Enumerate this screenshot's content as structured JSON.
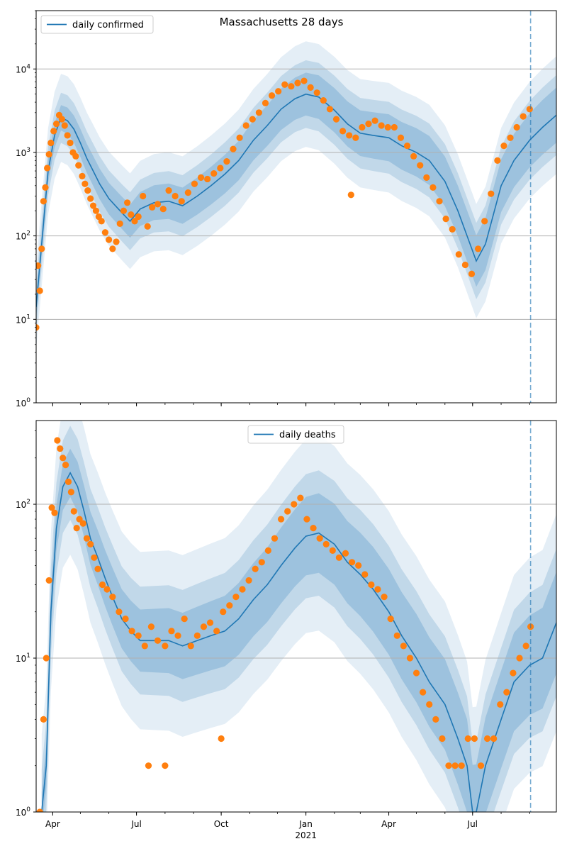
{
  "figure_title": "Massachusetts 28 days",
  "colors": {
    "line": "#1f77b4",
    "points": "#ff7f0e",
    "band": "#1f77b4",
    "grid": "#b0b0b0"
  },
  "chart_data": [
    {
      "type": "line",
      "title": "Massachusetts 28 days",
      "legend": "daily confirmed",
      "legend_position": "top-left",
      "y_scale": "log",
      "ylim": [
        1,
        50000
      ],
      "y_ticks": [
        1,
        10,
        100,
        1000,
        10000
      ],
      "y_tick_labels": [
        "10^0",
        "10^1",
        "10^2",
        "10^3",
        "10^4"
      ],
      "x_range": [
        "2020-03-14",
        "2021-09-30"
      ],
      "x_ticks": [
        "2020-04-01",
        "2020-07-01",
        "2020-10-01",
        "2021-01-01",
        "2021-04-01",
        "2021-07-01"
      ],
      "x_tick_labels": [
        "",
        "",
        "",
        "",
        "",
        ""
      ],
      "x_label_year": "",
      "grid": "horizontal",
      "vline_date": "2021-09-02",
      "series": [
        {
          "name": "daily confirmed",
          "style": "line",
          "x": [
            "2020-03-14",
            "2020-03-20",
            "2020-03-27",
            "2020-04-03",
            "2020-04-10",
            "2020-04-17",
            "2020-04-24",
            "2020-05-01",
            "2020-05-08",
            "2020-05-15",
            "2020-05-22",
            "2020-06-01",
            "2020-06-15",
            "2020-06-24",
            "2020-07-05",
            "2020-07-20",
            "2020-08-05",
            "2020-08-20",
            "2020-09-05",
            "2020-09-20",
            "2020-10-05",
            "2020-10-20",
            "2020-11-05",
            "2020-11-20",
            "2020-12-05",
            "2020-12-20",
            "2021-01-01",
            "2021-01-15",
            "2021-02-01",
            "2021-02-15",
            "2021-03-01",
            "2021-03-15",
            "2021-04-01",
            "2021-04-15",
            "2021-05-01",
            "2021-05-15",
            "2021-06-01",
            "2021-06-15",
            "2021-06-25",
            "2021-07-05",
            "2021-07-15",
            "2021-08-01",
            "2021-08-15",
            "2021-09-01",
            "2021-09-15",
            "2021-09-30"
          ],
          "y": [
            14,
            80,
            600,
            1600,
            2600,
            2400,
            1900,
            1300,
            850,
            600,
            420,
            280,
            190,
            150,
            210,
            250,
            260,
            230,
            300,
            400,
            550,
            800,
            1400,
            2100,
            3300,
            4400,
            5000,
            4600,
            3200,
            2200,
            1700,
            1600,
            1500,
            1200,
            1000,
            800,
            450,
            200,
            100,
            50,
            80,
            400,
            800,
            1400,
            2000,
            2800
          ]
        },
        {
          "name": "",
          "style": "points",
          "x": [
            "2020-03-14",
            "2020-03-16",
            "2020-03-18",
            "2020-03-20",
            "2020-03-22",
            "2020-03-24",
            "2020-03-26",
            "2020-03-28",
            "2020-03-30",
            "2020-04-02",
            "2020-04-05",
            "2020-04-08",
            "2020-04-11",
            "2020-04-14",
            "2020-04-17",
            "2020-04-20",
            "2020-04-23",
            "2020-04-26",
            "2020-04-29",
            "2020-05-03",
            "2020-05-06",
            "2020-05-09",
            "2020-05-12",
            "2020-05-15",
            "2020-05-18",
            "2020-05-21",
            "2020-05-24",
            "2020-05-28",
            "2020-06-01",
            "2020-06-05",
            "2020-06-09",
            "2020-06-13",
            "2020-06-17",
            "2020-06-21",
            "2020-06-25",
            "2020-06-29",
            "2020-07-03",
            "2020-07-08",
            "2020-07-13",
            "2020-07-18",
            "2020-07-24",
            "2020-07-30",
            "2020-08-05",
            "2020-08-12",
            "2020-08-19",
            "2020-08-26",
            "2020-09-02",
            "2020-09-09",
            "2020-09-16",
            "2020-09-23",
            "2020-09-30",
            "2020-10-07",
            "2020-10-14",
            "2020-10-21",
            "2020-10-28",
            "2020-11-04",
            "2020-11-11",
            "2020-11-18",
            "2020-11-25",
            "2020-12-02",
            "2020-12-09",
            "2020-12-16",
            "2020-12-23",
            "2020-12-30",
            "2021-01-06",
            "2021-01-13",
            "2021-01-20",
            "2021-01-27",
            "2021-02-03",
            "2021-02-10",
            "2021-02-17",
            "2021-02-24",
            "2021-03-03",
            "2021-03-10",
            "2021-03-17",
            "2021-03-24",
            "2021-03-31",
            "2021-04-07",
            "2021-04-14",
            "2021-04-21",
            "2021-04-28",
            "2021-05-05",
            "2021-05-12",
            "2021-05-19",
            "2021-05-26",
            "2021-06-02",
            "2021-06-09",
            "2021-06-16",
            "2021-06-23",
            "2021-06-30",
            "2021-07-07",
            "2021-07-14",
            "2021-07-21",
            "2021-07-28",
            "2021-08-04",
            "2021-08-11",
            "2021-08-18",
            "2021-08-25",
            "2021-09-01",
            "2021-02-19"
          ],
          "y": [
            8,
            44,
            22,
            70,
            260,
            380,
            650,
            950,
            1300,
            1800,
            2200,
            2800,
            2500,
            2100,
            1600,
            1300,
            1000,
            900,
            700,
            520,
            420,
            350,
            280,
            230,
            200,
            170,
            150,
            110,
            90,
            70,
            85,
            140,
            200,
            250,
            180,
            150,
            170,
            300,
            130,
            220,
            240,
            210,
            350,
            300,
            260,
            330,
            420,
            500,
            480,
            560,
            650,
            780,
            1100,
            1500,
            2100,
            2500,
            3000,
            3900,
            4800,
            5400,
            6500,
            6200,
            6800,
            7200,
            6000,
            5200,
            4200,
            3300,
            2500,
            1800,
            1600,
            1500,
            2000,
            2200,
            2400,
            2100,
            2000,
            2000,
            1500,
            1200,
            900,
            700,
            500,
            380,
            260,
            160,
            120,
            60,
            45,
            35,
            70,
            150,
            320,
            800,
            1200,
            1500,
            2000,
            2700,
            3300,
            310
          ]
        }
      ]
    },
    {
      "type": "line",
      "title": "",
      "legend": "daily deaths",
      "legend_position": "top-center",
      "y_scale": "log",
      "ylim": [
        1,
        350
      ],
      "y_ticks": [
        1,
        10,
        100
      ],
      "y_tick_labels": [
        "10^0",
        "10^1",
        "10^2"
      ],
      "x_range": [
        "2020-03-14",
        "2021-09-30"
      ],
      "x_ticks": [
        "2020-04-01",
        "2020-07-01",
        "2020-10-01",
        "2021-01-01",
        "2021-04-01",
        "2021-07-01"
      ],
      "x_tick_labels": [
        "Apr",
        "Jul",
        "Oct",
        "Jan",
        "Apr",
        "Jul"
      ],
      "x_label_year": "2021",
      "grid": "horizontal",
      "vline_date": "2021-09-02",
      "series": [
        {
          "name": "daily deaths",
          "style": "line",
          "x": [
            "2020-03-20",
            "2020-03-25",
            "2020-03-30",
            "2020-04-05",
            "2020-04-12",
            "2020-04-20",
            "2020-04-28",
            "2020-05-05",
            "2020-05-12",
            "2020-05-20",
            "2020-05-28",
            "2020-06-05",
            "2020-06-15",
            "2020-06-25",
            "2020-07-05",
            "2020-07-20",
            "2020-08-05",
            "2020-08-20",
            "2020-09-05",
            "2020-09-20",
            "2020-10-05",
            "2020-10-20",
            "2020-11-05",
            "2020-11-20",
            "2020-12-05",
            "2020-12-20",
            "2021-01-01",
            "2021-01-15",
            "2021-02-01",
            "2021-02-15",
            "2021-03-01",
            "2021-03-15",
            "2021-04-01",
            "2021-04-15",
            "2021-05-01",
            "2021-05-15",
            "2021-06-01",
            "2021-06-15",
            "2021-06-25",
            "2021-07-01",
            "2021-07-05",
            "2021-07-15",
            "2021-08-01",
            "2021-08-15",
            "2021-09-01",
            "2021-09-15",
            "2021-09-30"
          ],
          "y": [
            1,
            2,
            20,
            70,
            130,
            160,
            130,
            90,
            60,
            45,
            33,
            25,
            18,
            15,
            13,
            13,
            13,
            12,
            13,
            14,
            15,
            18,
            24,
            30,
            40,
            52,
            62,
            65,
            55,
            42,
            35,
            28,
            20,
            14,
            10,
            7,
            5,
            3,
            2,
            1,
            1,
            2,
            4,
            7,
            9,
            10,
            17
          ]
        },
        {
          "name": "",
          "style": "points",
          "x": [
            "2020-03-18",
            "2020-03-22",
            "2020-03-25",
            "2020-03-28",
            "2020-03-31",
            "2020-04-03",
            "2020-04-06",
            "2020-04-09",
            "2020-04-12",
            "2020-04-15",
            "2020-04-18",
            "2020-04-21",
            "2020-04-24",
            "2020-04-27",
            "2020-04-30",
            "2020-05-04",
            "2020-05-08",
            "2020-05-12",
            "2020-05-16",
            "2020-05-20",
            "2020-05-25",
            "2020-05-30",
            "2020-06-05",
            "2020-06-12",
            "2020-06-19",
            "2020-06-26",
            "2020-07-03",
            "2020-07-10",
            "2020-07-17",
            "2020-07-24",
            "2020-08-01",
            "2020-08-08",
            "2020-08-15",
            "2020-08-22",
            "2020-08-29",
            "2020-09-05",
            "2020-09-12",
            "2020-09-19",
            "2020-09-26",
            "2020-10-03",
            "2020-10-10",
            "2020-10-17",
            "2020-10-24",
            "2020-10-31",
            "2020-11-07",
            "2020-11-14",
            "2020-11-21",
            "2020-11-28",
            "2020-12-05",
            "2020-12-12",
            "2020-12-19",
            "2020-12-26",
            "2021-01-02",
            "2021-01-09",
            "2021-01-16",
            "2021-01-23",
            "2021-01-30",
            "2021-02-06",
            "2021-02-13",
            "2021-02-20",
            "2021-02-27",
            "2021-03-06",
            "2021-03-13",
            "2021-03-20",
            "2021-03-27",
            "2021-04-03",
            "2021-04-10",
            "2021-04-17",
            "2021-04-24",
            "2021-05-01",
            "2021-05-08",
            "2021-05-15",
            "2021-05-22",
            "2021-05-29",
            "2021-06-05",
            "2021-06-12",
            "2021-06-19",
            "2021-06-26",
            "2021-07-03",
            "2021-07-10",
            "2021-07-17",
            "2021-07-24",
            "2021-07-31",
            "2021-08-07",
            "2021-08-14",
            "2021-08-21",
            "2021-08-28",
            "2021-09-02",
            "2020-07-14",
            "2020-08-01",
            "2020-10-01"
          ],
          "y": [
            1,
            4,
            10,
            32,
            95,
            88,
            260,
            230,
            200,
            180,
            140,
            120,
            90,
            70,
            80,
            75,
            60,
            55,
            45,
            38,
            30,
            28,
            25,
            20,
            18,
            15,
            14,
            12,
            16,
            13,
            12,
            15,
            14,
            18,
            12,
            14,
            16,
            17,
            15,
            20,
            22,
            25,
            28,
            32,
            38,
            42,
            50,
            60,
            80,
            90,
            100,
            110,
            80,
            70,
            60,
            55,
            50,
            45,
            48,
            42,
            40,
            35,
            30,
            28,
            25,
            18,
            14,
            12,
            10,
            8,
            6,
            5,
            4,
            3,
            2,
            2,
            2,
            3,
            3,
            2,
            3,
            3,
            5,
            6,
            8,
            10,
            12,
            16,
            2,
            2,
            3
          ]
        }
      ]
    }
  ]
}
